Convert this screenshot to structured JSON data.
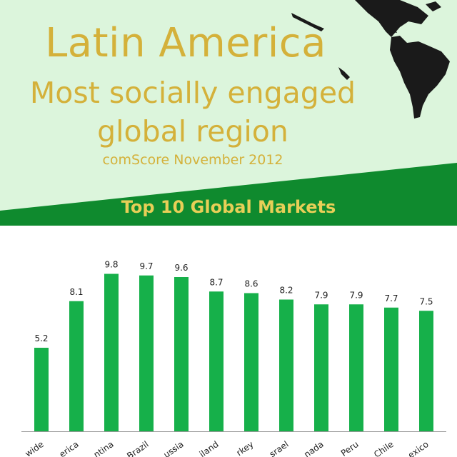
{
  "header": {
    "title": "Latin America",
    "subtitle_line1": "Most socially engaged",
    "subtitle_line2": "global region",
    "source": "comScore November 2012",
    "banner": "Top 10 Global Markets"
  },
  "colors": {
    "header_bg": "#dcf5dc",
    "title": "#d4b13a",
    "banner_bg": "#0f8a2e",
    "banner_text": "#e8cf57",
    "bar": "#16b04a",
    "map": "#1a1a1a"
  },
  "chart_data": {
    "type": "bar",
    "categories": [
      "Worldwide",
      "Latin America",
      "Argentina",
      "Brazil",
      "Russia",
      "Thailand",
      "Turkey",
      "Israel",
      "Canada",
      "Peru",
      "Chile",
      "Mexico"
    ],
    "visible_category_labels": [
      "wide",
      "erica",
      "ntina",
      "Brazil",
      "ussia",
      "iland",
      "rkey",
      "srael",
      "nada",
      "Peru",
      "Chile",
      "exico"
    ],
    "values": [
      5.2,
      8.1,
      9.8,
      9.7,
      9.6,
      8.7,
      8.6,
      8.2,
      7.9,
      7.9,
      7.7,
      7.5
    ],
    "data_labels": [
      "5.2",
      "8.1",
      "9.8",
      "9.7",
      "9.6",
      "8.7",
      "8.6",
      "8.2",
      "7.9",
      "7.9",
      "7.7",
      "7.5"
    ],
    "ylim": [
      0,
      10
    ],
    "grid": false,
    "legend": "none"
  }
}
